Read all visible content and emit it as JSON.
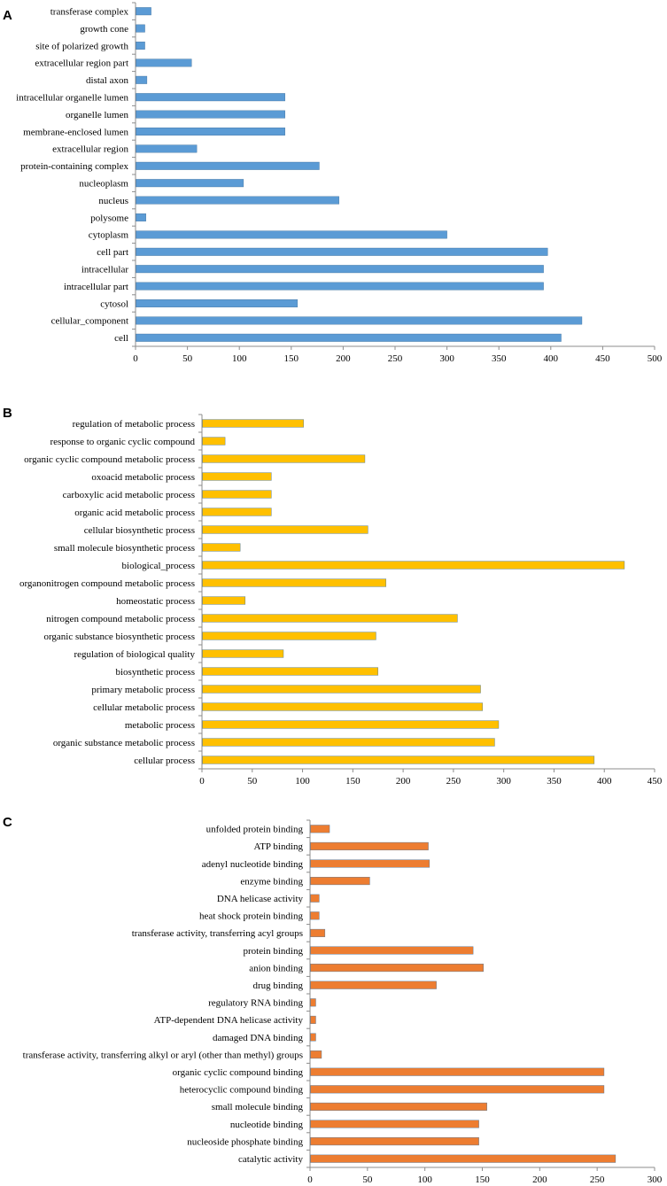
{
  "chart_data": [
    {
      "type": "bar",
      "orientation": "horizontal",
      "panel_label": "A",
      "title": "",
      "xlabel": "",
      "ylabel": "",
      "xlim": [
        0,
        500
      ],
      "xticks": [
        0,
        50,
        100,
        150,
        200,
        250,
        300,
        350,
        400,
        450,
        500
      ],
      "grid": false,
      "color": "#5B9BD5",
      "categories": [
        "transferase complex",
        "growth cone",
        "site of polarized growth",
        "extracellular region part",
        "distal axon",
        "intracellular organelle lumen",
        "organelle lumen",
        "membrane-enclosed lumen",
        "extracellular region",
        "protein-containing complex",
        "nucleoplasm",
        "nucleus",
        "polysome",
        "cytoplasm",
        "cell part",
        "intracellular",
        "intracellular part",
        "cytosol",
        "cellular_component",
        "cell"
      ],
      "values": [
        15,
        9,
        9,
        54,
        11,
        144,
        144,
        144,
        59,
        177,
        104,
        196,
        10,
        300,
        397,
        393,
        393,
        156,
        430,
        410
      ]
    },
    {
      "type": "bar",
      "orientation": "horizontal",
      "panel_label": "B",
      "title": "",
      "xlabel": "",
      "ylabel": "",
      "xlim": [
        0,
        450
      ],
      "xticks": [
        0,
        50,
        100,
        150,
        200,
        250,
        300,
        350,
        400,
        450
      ],
      "grid": false,
      "color": "#FFC000",
      "categories": [
        "regulation of metabolic process",
        "response to organic cyclic compound",
        "organic cyclic compound metabolic process",
        "oxoacid metabolic process",
        "carboxylic acid metabolic process",
        "organic acid metabolic process",
        "cellular biosynthetic process",
        "small molecule biosynthetic process",
        "biological_process",
        "organonitrogen compound metabolic process",
        "homeostatic process",
        "nitrogen compound metabolic process",
        "organic substance biosynthetic process",
        "regulation of biological quality",
        "biosynthetic process",
        "primary metabolic process",
        "cellular metabolic process",
        "metabolic process",
        "organic substance metabolic process",
        "cellular process"
      ],
      "values": [
        101,
        23,
        162,
        69,
        69,
        69,
        165,
        38,
        420,
        183,
        43,
        254,
        173,
        81,
        175,
        277,
        279,
        295,
        291,
        390
      ]
    },
    {
      "type": "bar",
      "orientation": "horizontal",
      "panel_label": "C",
      "title": "",
      "xlabel": "",
      "ylabel": "",
      "xlim": [
        0,
        300
      ],
      "xticks": [
        0,
        50,
        100,
        150,
        200,
        250,
        300
      ],
      "grid": false,
      "color": "#ED7D31",
      "categories": [
        "unfolded protein binding",
        "ATP binding",
        "adenyl nucleotide binding",
        "enzyme binding",
        "DNA helicase activity",
        "heat shock protein binding",
        "transferase activity, transferring acyl groups",
        "protein binding",
        "anion binding",
        "drug binding",
        "regulatory RNA binding",
        "ATP-dependent DNA helicase activity",
        "damaged DNA binding",
        "transferase activity, transferring alkyl or aryl (other than methyl) groups",
        "organic cyclic compound binding",
        "heterocyclic compound binding",
        "small molecule binding",
        "nucleotide binding",
        "nucleoside phosphate binding",
        "catalytic activity"
      ],
      "values": [
        17,
        103,
        104,
        52,
        8,
        8,
        13,
        142,
        151,
        110,
        5,
        5,
        5,
        10,
        256,
        256,
        154,
        147,
        147,
        266
      ]
    }
  ]
}
